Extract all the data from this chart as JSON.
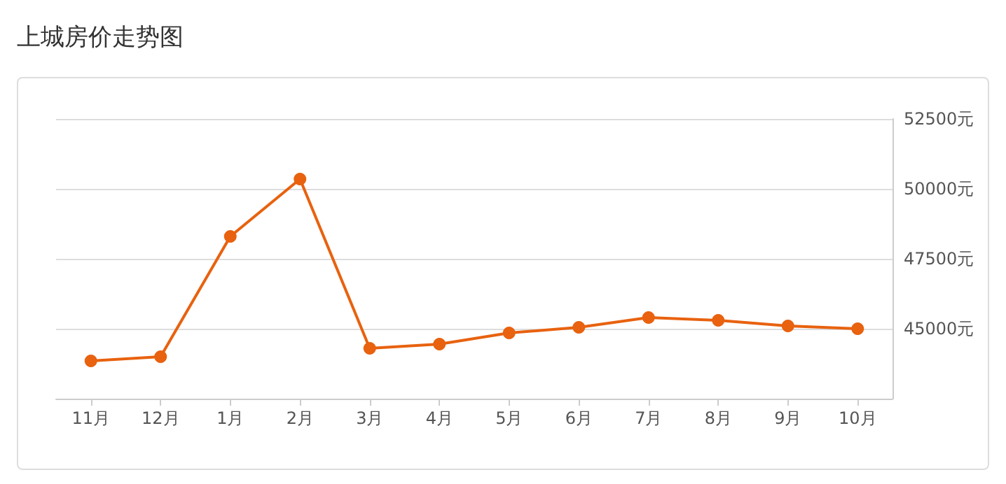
{
  "chart_data": {
    "type": "line",
    "title": "上城房价走势图",
    "categories": [
      "11月",
      "12月",
      "1月",
      "2月",
      "3月",
      "4月",
      "5月",
      "6月",
      "7月",
      "8月",
      "9月",
      "10月"
    ],
    "series": [
      {
        "color": "#e8620f",
        "values": [
          43850,
          44000,
          48300,
          50350,
          44300,
          44450,
          44850,
          45050,
          45400,
          45300,
          45100,
          45000
        ]
      }
    ],
    "ylim": [
      42500,
      52500
    ],
    "yticks": [
      {
        "value": 42500,
        "label": null
      },
      {
        "value": 45000,
        "label": "45000元"
      },
      {
        "value": 47500,
        "label": "47500元"
      },
      {
        "value": 50000,
        "label": "50000元"
      },
      {
        "value": 52500,
        "label": "52500元"
      }
    ],
    "grid": "y",
    "marker": "circle",
    "line_style": "solid"
  }
}
